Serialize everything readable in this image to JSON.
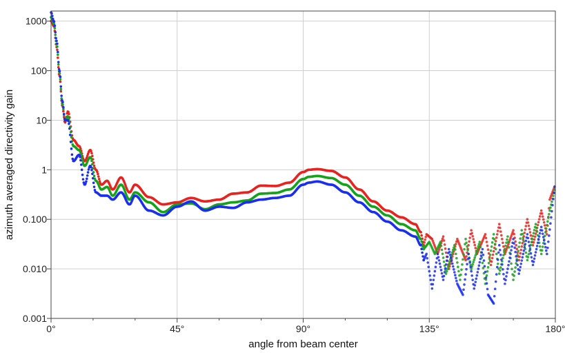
{
  "chart_data": {
    "type": "scatter",
    "title": "",
    "xlabel": "angle from beam center",
    "ylabel": "azimuth averaged directivity gain",
    "xlim": [
      0,
      180
    ],
    "ylim": [
      0.001,
      1600
    ],
    "yscale": "log",
    "grid": true,
    "legend": "none",
    "x_ticks": [
      0,
      45,
      90,
      135,
      180
    ],
    "x_tick_labels": [
      "0°",
      "45°",
      "90°",
      "135°",
      "180°"
    ],
    "y_ticks": [
      0.001,
      0.01,
      0.1,
      1,
      10,
      100,
      1000
    ],
    "y_tick_labels": [
      "0.001",
      "0.010",
      "0.100",
      "1",
      "10",
      "100",
      "1000"
    ],
    "series": [
      {
        "color": "#e8231f",
        "x": [
          0,
          1,
          2,
          3,
          4,
          5,
          6,
          8,
          10,
          12,
          14,
          16,
          18,
          20,
          22,
          25,
          28,
          30,
          35,
          40,
          45,
          50,
          55,
          60,
          65,
          70,
          75,
          80,
          85,
          90,
          92,
          95,
          100,
          105,
          110,
          115,
          120,
          125,
          130,
          132
        ],
        "y": [
          1000,
          800,
          300,
          80,
          20,
          9,
          15,
          4,
          3,
          1.5,
          2.5,
          1.0,
          0.5,
          0.6,
          0.4,
          0.7,
          0.35,
          0.5,
          0.28,
          0.2,
          0.22,
          0.27,
          0.23,
          0.25,
          0.33,
          0.35,
          0.48,
          0.47,
          0.55,
          0.9,
          1.0,
          1.03,
          0.95,
          0.7,
          0.4,
          0.23,
          0.15,
          0.11,
          0.08,
          0.055
        ],
        "scatter_tail": [
          [
            133,
            0.03
          ],
          [
            134,
            0.05
          ],
          [
            136,
            0.04
          ],
          [
            138,
            0.02
          ],
          [
            140,
            0.045
          ],
          [
            142,
            0.01
          ],
          [
            145,
            0.04
          ],
          [
            148,
            0.015
          ],
          [
            150,
            0.06
          ],
          [
            152,
            0.02
          ],
          [
            155,
            0.05
          ],
          [
            157,
            0.012
          ],
          [
            160,
            0.08
          ],
          [
            162,
            0.02
          ],
          [
            165,
            0.06
          ],
          [
            167,
            0.015
          ],
          [
            170,
            0.1
          ],
          [
            172,
            0.03
          ],
          [
            175,
            0.15
          ],
          [
            177,
            0.05
          ],
          [
            178,
            0.25
          ],
          [
            180,
            0.5
          ]
        ]
      },
      {
        "color": "#16a21a",
        "x": [
          0,
          1,
          2,
          3,
          4,
          5,
          6,
          8,
          10,
          12,
          14,
          16,
          18,
          20,
          22,
          25,
          28,
          30,
          35,
          40,
          45,
          50,
          55,
          60,
          65,
          70,
          75,
          80,
          85,
          90,
          92,
          95,
          100,
          105,
          110,
          115,
          120,
          125,
          130,
          132
        ],
        "y": [
          1200,
          900,
          350,
          90,
          22,
          10,
          12,
          3,
          2.5,
          1.2,
          1.8,
          0.6,
          0.4,
          0.45,
          0.3,
          0.5,
          0.25,
          0.35,
          0.22,
          0.14,
          0.2,
          0.21,
          0.16,
          0.2,
          0.22,
          0.24,
          0.33,
          0.34,
          0.4,
          0.65,
          0.72,
          0.75,
          0.68,
          0.5,
          0.3,
          0.18,
          0.12,
          0.08,
          0.06,
          0.04
        ],
        "scatter_tail": [
          [
            133,
            0.025
          ],
          [
            135,
            0.035
          ],
          [
            137,
            0.02
          ],
          [
            139,
            0.035
          ],
          [
            141,
            0.008
          ],
          [
            144,
            0.03
          ],
          [
            146,
            0.006
          ],
          [
            148,
            0.04
          ],
          [
            150,
            0.01
          ],
          [
            153,
            0.035
          ],
          [
            155,
            0.005
          ],
          [
            158,
            0.05
          ],
          [
            160,
            0.008
          ],
          [
            163,
            0.045
          ],
          [
            165,
            0.006
          ],
          [
            168,
            0.06
          ],
          [
            170,
            0.015
          ],
          [
            173,
            0.08
          ],
          [
            175,
            0.02
          ],
          [
            178,
            0.15
          ],
          [
            180,
            0.45
          ]
        ]
      },
      {
        "color": "#1a2ef0",
        "x": [
          0,
          1,
          2,
          3,
          4,
          5,
          6,
          8,
          10,
          12,
          14,
          16,
          18,
          20,
          22,
          25,
          28,
          30,
          35,
          40,
          45,
          50,
          55,
          60,
          65,
          70,
          75,
          80,
          85,
          90,
          92,
          95,
          100,
          105,
          110,
          115,
          120,
          125,
          130,
          132
        ],
        "y": [
          1500,
          1000,
          400,
          100,
          25,
          10,
          10,
          1.5,
          2.0,
          0.5,
          1.2,
          0.35,
          0.3,
          0.3,
          0.25,
          0.35,
          0.2,
          0.3,
          0.15,
          0.12,
          0.18,
          0.23,
          0.15,
          0.18,
          0.17,
          0.22,
          0.25,
          0.27,
          0.3,
          0.5,
          0.55,
          0.58,
          0.5,
          0.35,
          0.22,
          0.14,
          0.09,
          0.06,
          0.045,
          0.03
        ],
        "scatter_tail": [
          [
            133,
            0.015
          ],
          [
            134,
            0.02
          ],
          [
            136,
            0.004
          ],
          [
            138,
            0.02
          ],
          [
            140,
            0.006
          ],
          [
            142,
            0.025
          ],
          [
            145,
            0.005
          ],
          [
            147,
            0.003
          ],
          [
            149,
            0.02
          ],
          [
            151,
            0.004
          ],
          [
            154,
            0.025
          ],
          [
            156,
            0.003
          ],
          [
            158,
            0.002
          ],
          [
            160,
            0.03
          ],
          [
            162,
            0.005
          ],
          [
            165,
            0.04
          ],
          [
            167,
            0.008
          ],
          [
            170,
            0.05
          ],
          [
            172,
            0.012
          ],
          [
            175,
            0.07
          ],
          [
            177,
            0.02
          ],
          [
            180,
            0.6
          ]
        ]
      }
    ]
  }
}
